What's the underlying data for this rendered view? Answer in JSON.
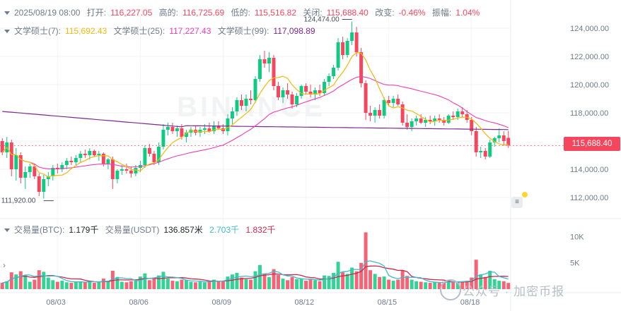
{
  "header": {
    "date": "2025/08/19 08:00",
    "open_label": "打开:",
    "open_value": "116,227.05",
    "high_label": "高的:",
    "high_value": "116,725.69",
    "low_label": "低的:",
    "low_value": "115,516.82",
    "close_label": "关闭:",
    "close_value": "115,688.40",
    "change_label": "改变:",
    "change_value": "-0.46%",
    "amp_label": "振幅:",
    "amp_value": "1.04%"
  },
  "ma_legend": {
    "ma7_label": "文学硕士(7):",
    "ma7_value": "115,692.43",
    "ma7_color": "#f0b90b",
    "ma25_label": "文学硕士(25):",
    "ma25_value": "117,227.43",
    "ma25_color": "#eb40b5",
    "ma99_label": "文学硕士(99):",
    "ma99_value": "117,098.89",
    "ma99_color": "#7b2a8c"
  },
  "volume_legend": {
    "btc_label": "交易量(BTC):",
    "btc_value": "1.179千",
    "usdt_label": "交易量(USDT)",
    "usdt_value": "136.857米",
    "ma5_value": "2.703千",
    "ma5_color": "#44b8cc",
    "ma10_value": "1.832千",
    "ma10_color": "#c8294a"
  },
  "current_price_tag": "115,688.40",
  "watermark": {
    "logo_text": "BINANCE",
    "overlay_text": "公众号 · 加密币报"
  },
  "colors": {
    "up": "#0ecb81",
    "down": "#f6465d",
    "grid": "#f0f1f3"
  },
  "chart_data": {
    "type": "candlestick",
    "x_ticks": [
      "08/03",
      "08/06",
      "08/09",
      "08/12",
      "08/15",
      "08/18"
    ],
    "y_ticks": [
      "124,000.00",
      "122,000.00",
      "120,000.00",
      "118,000.00",
      "116,000.00",
      "114,000.00",
      "112,000.00"
    ],
    "y_range": [
      111000,
      125000
    ],
    "volume_ticks": [
      "10K",
      "5K"
    ],
    "volume_range": [
      0,
      11000
    ],
    "annotations": {
      "high_label": "124,474.00",
      "low_label": "111,920.00"
    },
    "candles": [
      {
        "o": 116000,
        "h": 116200,
        "l": 115000,
        "c": 115200,
        "v": 1200
      },
      {
        "o": 115200,
        "h": 116300,
        "l": 114800,
        "c": 115900,
        "v": 1500
      },
      {
        "o": 115900,
        "h": 116100,
        "l": 113500,
        "c": 114000,
        "v": 3200
      },
      {
        "o": 114000,
        "h": 115500,
        "l": 113200,
        "c": 115000,
        "v": 2800
      },
      {
        "o": 115000,
        "h": 115200,
        "l": 113000,
        "c": 113400,
        "v": 3400
      },
      {
        "o": 113400,
        "h": 114200,
        "l": 112600,
        "c": 113800,
        "v": 2600
      },
      {
        "o": 113800,
        "h": 114400,
        "l": 113400,
        "c": 114200,
        "v": 1400
      },
      {
        "o": 114200,
        "h": 114400,
        "l": 113300,
        "c": 113500,
        "v": 1800
      },
      {
        "o": 113500,
        "h": 113700,
        "l": 112100,
        "c": 112400,
        "v": 3600
      },
      {
        "o": 112400,
        "h": 113600,
        "l": 111920,
        "c": 113300,
        "v": 3300
      },
      {
        "o": 113300,
        "h": 113800,
        "l": 112800,
        "c": 113500,
        "v": 2200
      },
      {
        "o": 113500,
        "h": 114300,
        "l": 113200,
        "c": 114100,
        "v": 1700
      },
      {
        "o": 114100,
        "h": 114400,
        "l": 113700,
        "c": 114000,
        "v": 1400
      },
      {
        "o": 114000,
        "h": 114500,
        "l": 113800,
        "c": 114300,
        "v": 1600
      },
      {
        "o": 114300,
        "h": 114800,
        "l": 114000,
        "c": 114600,
        "v": 1300
      },
      {
        "o": 114600,
        "h": 114900,
        "l": 114300,
        "c": 114500,
        "v": 1200
      },
      {
        "o": 114500,
        "h": 115000,
        "l": 114300,
        "c": 114800,
        "v": 1400
      },
      {
        "o": 114800,
        "h": 115300,
        "l": 114500,
        "c": 115100,
        "v": 1500
      },
      {
        "o": 115100,
        "h": 115400,
        "l": 114800,
        "c": 115000,
        "v": 1300
      },
      {
        "o": 115000,
        "h": 115500,
        "l": 114700,
        "c": 115300,
        "v": 1600
      },
      {
        "o": 115300,
        "h": 115400,
        "l": 114900,
        "c": 115000,
        "v": 1200
      },
      {
        "o": 115000,
        "h": 115300,
        "l": 114600,
        "c": 115100,
        "v": 1300
      },
      {
        "o": 115100,
        "h": 115200,
        "l": 114200,
        "c": 114400,
        "v": 2000
      },
      {
        "o": 114400,
        "h": 114800,
        "l": 114000,
        "c": 114700,
        "v": 1500
      },
      {
        "o": 114700,
        "h": 114900,
        "l": 112600,
        "c": 113300,
        "v": 3500
      },
      {
        "o": 113300,
        "h": 114000,
        "l": 113000,
        "c": 113900,
        "v": 2300
      },
      {
        "o": 113900,
        "h": 114300,
        "l": 113600,
        "c": 114000,
        "v": 1400
      },
      {
        "o": 114000,
        "h": 114400,
        "l": 113700,
        "c": 113900,
        "v": 1300
      },
      {
        "o": 113900,
        "h": 114200,
        "l": 113400,
        "c": 113700,
        "v": 1500
      },
      {
        "o": 113700,
        "h": 114300,
        "l": 113500,
        "c": 114100,
        "v": 1600
      },
      {
        "o": 114100,
        "h": 114600,
        "l": 113800,
        "c": 114300,
        "v": 2400
      },
      {
        "o": 114300,
        "h": 115700,
        "l": 114100,
        "c": 115500,
        "v": 3000
      },
      {
        "o": 115500,
        "h": 115800,
        "l": 114900,
        "c": 115100,
        "v": 1700
      },
      {
        "o": 115100,
        "h": 115300,
        "l": 114300,
        "c": 114500,
        "v": 2000
      },
      {
        "o": 114500,
        "h": 115900,
        "l": 114300,
        "c": 115600,
        "v": 2600
      },
      {
        "o": 115600,
        "h": 117200,
        "l": 115400,
        "c": 116800,
        "v": 3300
      },
      {
        "o": 116800,
        "h": 117300,
        "l": 116400,
        "c": 117000,
        "v": 2000
      },
      {
        "o": 117000,
        "h": 117300,
        "l": 116500,
        "c": 116700,
        "v": 1600
      },
      {
        "o": 116700,
        "h": 117100,
        "l": 116300,
        "c": 116900,
        "v": 1500
      },
      {
        "o": 116900,
        "h": 117200,
        "l": 116100,
        "c": 116300,
        "v": 1800
      },
      {
        "o": 116300,
        "h": 116800,
        "l": 115900,
        "c": 116600,
        "v": 1700
      },
      {
        "o": 116600,
        "h": 117000,
        "l": 116300,
        "c": 116800,
        "v": 1400
      },
      {
        "o": 116800,
        "h": 117100,
        "l": 116400,
        "c": 116600,
        "v": 1300
      },
      {
        "o": 116600,
        "h": 117000,
        "l": 116300,
        "c": 116800,
        "v": 1400
      },
      {
        "o": 116800,
        "h": 117200,
        "l": 116500,
        "c": 116900,
        "v": 1300
      },
      {
        "o": 116900,
        "h": 117300,
        "l": 116600,
        "c": 116700,
        "v": 1600
      },
      {
        "o": 116700,
        "h": 117400,
        "l": 116500,
        "c": 117100,
        "v": 1800
      },
      {
        "o": 117100,
        "h": 117400,
        "l": 116800,
        "c": 116900,
        "v": 1500
      },
      {
        "o": 116900,
        "h": 117200,
        "l": 116500,
        "c": 116700,
        "v": 1600
      },
      {
        "o": 116700,
        "h": 117900,
        "l": 116400,
        "c": 117600,
        "v": 2400
      },
      {
        "o": 117600,
        "h": 118400,
        "l": 117200,
        "c": 118100,
        "v": 2800
      },
      {
        "o": 118100,
        "h": 119100,
        "l": 117800,
        "c": 118900,
        "v": 3100
      },
      {
        "o": 118900,
        "h": 119300,
        "l": 118200,
        "c": 118500,
        "v": 2200
      },
      {
        "o": 118500,
        "h": 119300,
        "l": 118100,
        "c": 119000,
        "v": 1900
      },
      {
        "o": 119000,
        "h": 119600,
        "l": 118600,
        "c": 118900,
        "v": 1800
      },
      {
        "o": 118900,
        "h": 120600,
        "l": 118700,
        "c": 120400,
        "v": 3400
      },
      {
        "o": 120400,
        "h": 122100,
        "l": 120200,
        "c": 121800,
        "v": 4600
      },
      {
        "o": 121800,
        "h": 122400,
        "l": 121200,
        "c": 121500,
        "v": 2900
      },
      {
        "o": 121500,
        "h": 122300,
        "l": 120900,
        "c": 121900,
        "v": 2300
      },
      {
        "o": 121900,
        "h": 122100,
        "l": 119600,
        "c": 119900,
        "v": 3800
      },
      {
        "o": 119900,
        "h": 120200,
        "l": 118900,
        "c": 119100,
        "v": 2700
      },
      {
        "o": 119100,
        "h": 119800,
        "l": 118700,
        "c": 119600,
        "v": 2000
      },
      {
        "o": 119600,
        "h": 120100,
        "l": 119000,
        "c": 119300,
        "v": 1700
      },
      {
        "o": 119300,
        "h": 119500,
        "l": 118300,
        "c": 118600,
        "v": 2300
      },
      {
        "o": 118600,
        "h": 119400,
        "l": 118400,
        "c": 119200,
        "v": 1900
      },
      {
        "o": 119200,
        "h": 120000,
        "l": 119000,
        "c": 119900,
        "v": 2000
      },
      {
        "o": 119900,
        "h": 120100,
        "l": 119300,
        "c": 119500,
        "v": 1600
      },
      {
        "o": 119500,
        "h": 120000,
        "l": 119100,
        "c": 119300,
        "v": 1800
      },
      {
        "o": 119300,
        "h": 119800,
        "l": 118900,
        "c": 119600,
        "v": 1700
      },
      {
        "o": 119600,
        "h": 120000,
        "l": 119200,
        "c": 119400,
        "v": 1500
      },
      {
        "o": 119400,
        "h": 120400,
        "l": 119200,
        "c": 120200,
        "v": 2600
      },
      {
        "o": 120200,
        "h": 120800,
        "l": 119900,
        "c": 120600,
        "v": 2500
      },
      {
        "o": 120600,
        "h": 121400,
        "l": 120400,
        "c": 121200,
        "v": 3100
      },
      {
        "o": 121200,
        "h": 123300,
        "l": 121000,
        "c": 123000,
        "v": 5200
      },
      {
        "o": 123000,
        "h": 123400,
        "l": 121800,
        "c": 122100,
        "v": 3200
      },
      {
        "o": 122100,
        "h": 123300,
        "l": 121900,
        "c": 123100,
        "v": 2900
      },
      {
        "o": 123100,
        "h": 124474,
        "l": 122800,
        "c": 123700,
        "v": 4100
      },
      {
        "o": 123700,
        "h": 124100,
        "l": 122000,
        "c": 122300,
        "v": 3400
      },
      {
        "o": 122300,
        "h": 122600,
        "l": 119800,
        "c": 120100,
        "v": 5000
      },
      {
        "o": 120100,
        "h": 120300,
        "l": 117500,
        "c": 118000,
        "v": 10800
      },
      {
        "o": 118000,
        "h": 118500,
        "l": 117400,
        "c": 117800,
        "v": 3600
      },
      {
        "o": 117800,
        "h": 118400,
        "l": 117300,
        "c": 118200,
        "v": 2900
      },
      {
        "o": 118200,
        "h": 118600,
        "l": 117600,
        "c": 117800,
        "v": 2300
      },
      {
        "o": 117800,
        "h": 119100,
        "l": 117600,
        "c": 118900,
        "v": 2400
      },
      {
        "o": 118900,
        "h": 119200,
        "l": 118500,
        "c": 118700,
        "v": 1800
      },
      {
        "o": 118700,
        "h": 119200,
        "l": 118400,
        "c": 119000,
        "v": 1600
      },
      {
        "o": 119000,
        "h": 119300,
        "l": 118500,
        "c": 118600,
        "v": 1800
      },
      {
        "o": 118600,
        "h": 118800,
        "l": 117100,
        "c": 117300,
        "v": 3600
      },
      {
        "o": 117300,
        "h": 117900,
        "l": 116800,
        "c": 117000,
        "v": 2500
      },
      {
        "o": 117000,
        "h": 117600,
        "l": 116700,
        "c": 117400,
        "v": 1800
      },
      {
        "o": 117400,
        "h": 117800,
        "l": 117100,
        "c": 117600,
        "v": 1500
      },
      {
        "o": 117600,
        "h": 117900,
        "l": 117200,
        "c": 117300,
        "v": 1400
      },
      {
        "o": 117300,
        "h": 117700,
        "l": 117000,
        "c": 117500,
        "v": 1300
      },
      {
        "o": 117500,
        "h": 117800,
        "l": 117200,
        "c": 117400,
        "v": 1200
      },
      {
        "o": 117400,
        "h": 117800,
        "l": 117100,
        "c": 117600,
        "v": 1300
      },
      {
        "o": 117600,
        "h": 117900,
        "l": 117300,
        "c": 117500,
        "v": 1200
      },
      {
        "o": 117500,
        "h": 117700,
        "l": 117100,
        "c": 117300,
        "v": 1400
      },
      {
        "o": 117300,
        "h": 117900,
        "l": 117200,
        "c": 117800,
        "v": 1600
      },
      {
        "o": 117800,
        "h": 118100,
        "l": 117500,
        "c": 117700,
        "v": 1300
      },
      {
        "o": 117700,
        "h": 118300,
        "l": 117500,
        "c": 118100,
        "v": 1500
      },
      {
        "o": 118100,
        "h": 118400,
        "l": 117700,
        "c": 117900,
        "v": 1400
      },
      {
        "o": 117900,
        "h": 118200,
        "l": 117300,
        "c": 117500,
        "v": 1600
      },
      {
        "o": 117500,
        "h": 117700,
        "l": 116400,
        "c": 116700,
        "v": 2200
      },
      {
        "o": 116700,
        "h": 117000,
        "l": 114900,
        "c": 115200,
        "v": 5600
      },
      {
        "o": 115200,
        "h": 115600,
        "l": 114800,
        "c": 115300,
        "v": 2800
      },
      {
        "o": 115300,
        "h": 115500,
        "l": 114700,
        "c": 114900,
        "v": 2300
      },
      {
        "o": 114900,
        "h": 116100,
        "l": 114800,
        "c": 115900,
        "v": 3500
      },
      {
        "o": 115900,
        "h": 116300,
        "l": 115600,
        "c": 116200,
        "v": 1900
      },
      {
        "o": 116200,
        "h": 116900,
        "l": 115900,
        "c": 116400,
        "v": 1600
      },
      {
        "o": 116400,
        "h": 116700,
        "l": 115700,
        "c": 116000,
        "v": 1500
      },
      {
        "o": 116227,
        "h": 116726,
        "l": 115517,
        "c": 115688,
        "v": 1179
      }
    ]
  }
}
